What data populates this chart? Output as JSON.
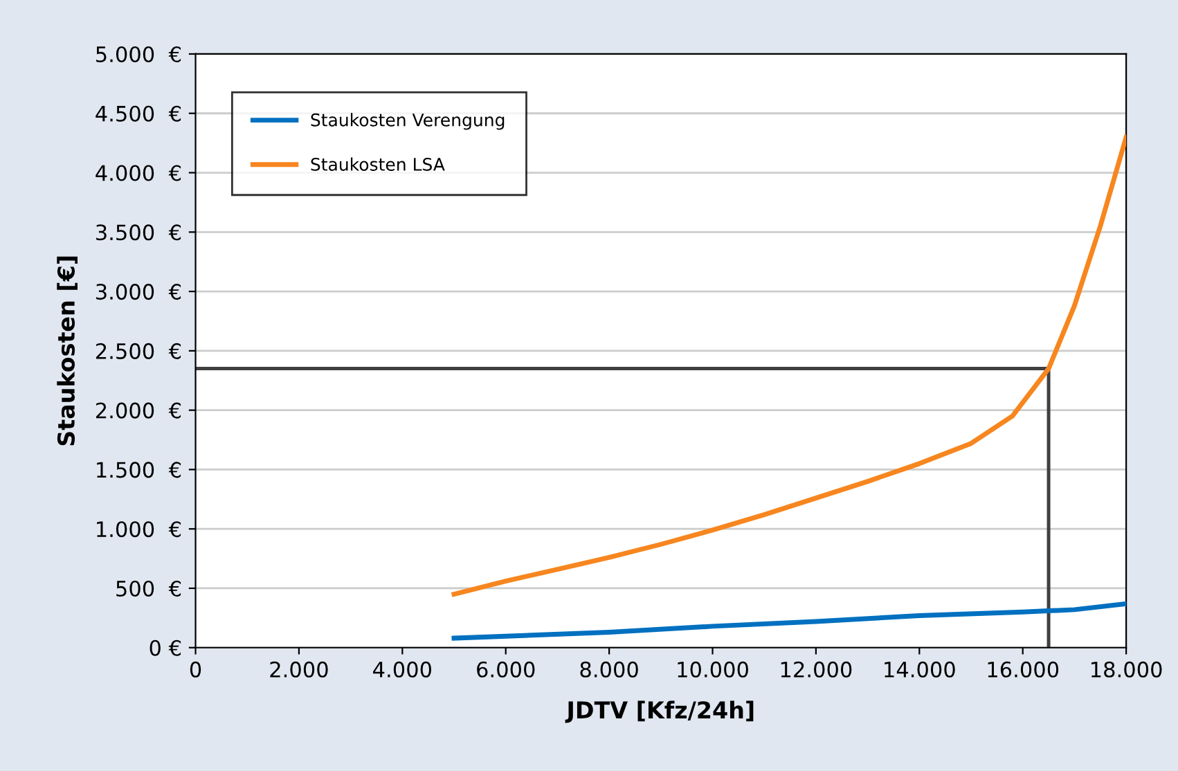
{
  "chart_data": {
    "type": "line",
    "xlabel": "JDTV [Kfz/24h]",
    "ylabel": "Staukosten [€]",
    "series": [
      {
        "name": "Staukosten Verengung",
        "color": "#0070c0",
        "x": [
          5000,
          8000,
          10000,
          12000,
          14000,
          16000,
          16500,
          17000,
          18000
        ],
        "values": [
          80,
          130,
          180,
          220,
          270,
          300,
          310,
          320,
          370
        ]
      },
      {
        "name": "Staukosten LSA",
        "color": "#f7861f",
        "x": [
          5000,
          6000,
          7000,
          8000,
          9000,
          10000,
          11000,
          12000,
          13000,
          14000,
          15000,
          15800,
          16500,
          17000,
          17500,
          18000
        ],
        "values": [
          450,
          560,
          660,
          760,
          870,
          990,
          1120,
          1260,
          1400,
          1550,
          1720,
          1950,
          2350,
          2880,
          3550,
          4300
        ]
      }
    ],
    "xlim": [
      0,
      18000
    ],
    "xticks": [
      0,
      {
        "value": 2000,
        "label": "2.000"
      },
      {
        "value": 4000,
        "label": "4.000"
      },
      {
        "value": 6000,
        "label": "6.000"
      },
      {
        "value": 8000,
        "label": "8.000"
      },
      {
        "value": 10000,
        "label": "10.000"
      },
      {
        "value": 12000,
        "label": "12.000"
      },
      {
        "value": 14000,
        "label": "14.000"
      },
      {
        "value": 16000,
        "label": "16.000"
      },
      {
        "value": 18000,
        "label": "18.000"
      }
    ],
    "ylim": [
      0,
      5000
    ],
    "yticks": [
      {
        "value": 0,
        "label": "0 €"
      },
      {
        "value": 500,
        "label": "500  €"
      },
      {
        "value": 1000,
        "label": "1.000  €"
      },
      {
        "value": 1500,
        "label": "1.500  €"
      },
      {
        "value": 2000,
        "label": "2.000  €"
      },
      {
        "value": 2500,
        "label": "2.500  €"
      },
      {
        "value": 3000,
        "label": "3.000  €"
      },
      {
        "value": 3500,
        "label": "3.500  €"
      },
      {
        "value": 4000,
        "label": "4.000  €"
      },
      {
        "value": 4500,
        "label": "4.500  €"
      },
      {
        "value": 5000,
        "label": "5.000  €"
      }
    ],
    "ref_lines": [
      {
        "axis": "y",
        "value": 2350,
        "color": "#404040"
      },
      {
        "axis": "x",
        "value": 16500,
        "color": "#404040"
      }
    ],
    "grid": "y",
    "legend": "top left",
    "marker": "none",
    "line_style": "solid"
  }
}
